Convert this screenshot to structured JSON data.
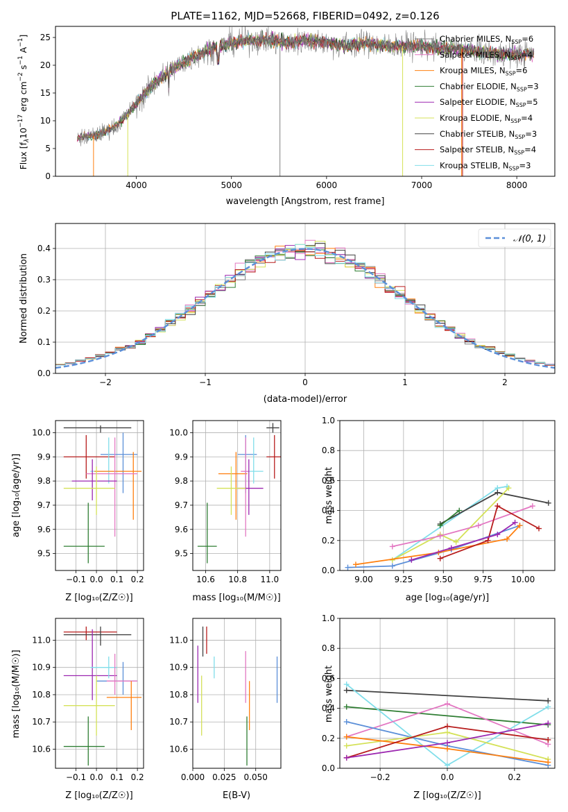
{
  "chart_data": [
    {
      "id": "spectrum",
      "type": "line",
      "title": "PLATE=1162, MJD=52668, FIBERID=0492, z=0.126",
      "xlabel": "wavelength [Angstrom, rest frame]",
      "ylabel": "Flux [f$_\\lambda$10$^{-17}$ erg cm$^{-2}$ s$^{-1}$ A$^{-1}$]",
      "ylabel_parts": {
        "a": "Flux [f",
        "b": "λ",
        "c": "10",
        "d": "−17",
        "e": " erg cm",
        "f": "−2",
        "g": " s",
        "h": "−1",
        "i": " A",
        "j": "−1",
        "k": "]"
      },
      "xlim": [
        3150,
        8400
      ],
      "ylim": [
        0,
        27
      ],
      "xticks": [
        4000,
        5000,
        6000,
        7000,
        8000
      ],
      "yticks": [
        0,
        5,
        10,
        15,
        20,
        25
      ],
      "legend_position": "top-right",
      "legend": [
        {
          "name": "Chabrier MILES, N",
          "sub": "SSP",
          "val": "=6",
          "color": "#808080"
        },
        {
          "name": "Salpeter MILES, N",
          "sub": "SSP",
          "val": "=4",
          "color": "#e377c2"
        },
        {
          "name": "Kroupa MILES, N",
          "sub": "SSP",
          "val": "=6",
          "color": "#ff7f0e"
        },
        {
          "name": "Chabrier ELODIE, N",
          "sub": "SSP",
          "val": "=3",
          "color": "#2e7d32"
        },
        {
          "name": "Salpeter ELODIE, N",
          "sub": "SSP",
          "val": "=5",
          "color": "#9c27b0"
        },
        {
          "name": "Kroupa ELODIE, N",
          "sub": "SSP",
          "val": "=4",
          "color": "#d4e157"
        },
        {
          "name": "Chabrier STELIB, N",
          "sub": "SSP",
          "val": "=3",
          "color": "#404040"
        },
        {
          "name": "Salpeter STELIB, N",
          "sub": "SSP",
          "val": "=4",
          "color": "#b71c1c"
        },
        {
          "name": "Kroupa STELIB, N",
          "sub": "SSP",
          "val": "=3",
          "color": "#80deea"
        }
      ],
      "continuum": [
        [
          3380,
          6.8
        ],
        [
          3600,
          7.5
        ],
        [
          3800,
          9.2
        ],
        [
          4000,
          13
        ],
        [
          4200,
          17
        ],
        [
          4400,
          19.5
        ],
        [
          4600,
          21.5
        ],
        [
          4800,
          23
        ],
        [
          5000,
          24
        ],
        [
          5200,
          24.5
        ],
        [
          5400,
          24.5
        ],
        [
          5600,
          24
        ],
        [
          5800,
          24.5
        ],
        [
          6000,
          24
        ],
        [
          6200,
          23.5
        ],
        [
          6400,
          24
        ],
        [
          6600,
          23.5
        ],
        [
          6800,
          23.5
        ],
        [
          7000,
          23.5
        ],
        [
          7200,
          23
        ],
        [
          7400,
          23
        ],
        [
          7600,
          22.5
        ],
        [
          7800,
          22
        ],
        [
          8000,
          22
        ],
        [
          8200,
          22
        ]
      ],
      "xrange": [
        3380,
        8180
      ],
      "dips": [
        [
          3550,
          "#ff7f0e"
        ],
        [
          3910,
          "#d4e157"
        ],
        [
          5510,
          "#808080"
        ],
        [
          6800,
          "#d4e157"
        ],
        [
          7420,
          "#ff7f0e"
        ],
        [
          7430,
          "#b71c1c"
        ]
      ]
    },
    {
      "id": "residuals",
      "type": "histogram",
      "xlabel": "(data-model)/error",
      "ylabel": "Normed distribution",
      "xlim": [
        -2.5,
        2.5
      ],
      "ylim": [
        0,
        0.48
      ],
      "xticks": [
        -2,
        -1,
        0,
        1,
        2
      ],
      "xtick_labels": [
        "−2",
        "−1",
        "0",
        "1",
        "2"
      ],
      "yticks": [
        0.0,
        0.1,
        0.2,
        0.3,
        0.4
      ],
      "ytick_labels": [
        "0.0",
        "0.1",
        "0.2",
        "0.3",
        "0.4"
      ],
      "grid": true,
      "reference_curve": {
        "name": "𝒩(0, 1)",
        "mean": 0,
        "sigma": 1,
        "color": "#5b8fd8",
        "dashed": true
      },
      "bin_width": 0.1,
      "colors": [
        "#808080",
        "#e377c2",
        "#ff7f0e",
        "#2e7d32",
        "#9c27b0",
        "#d4e157",
        "#404040",
        "#b71c1c",
        "#80deea"
      ]
    },
    {
      "id": "age_vs_Z",
      "type": "errorbar",
      "xlabel": "Z [log₁₀(Z/Z☉)]",
      "ylabel": "age  [log₁₀(age/yr)]",
      "xlim": [
        -0.2,
        0.23
      ],
      "ylim": [
        9.43,
        10.05
      ],
      "xticks": [
        -0.1,
        0.0,
        0.1,
        0.2
      ],
      "xtick_labels": [
        "−0.1",
        "0.0",
        "0.1",
        "0.2"
      ],
      "yticks": [
        9.5,
        9.6,
        9.7,
        9.8,
        9.9,
        10.0
      ],
      "ytick_labels": [
        "9.5",
        "9.6",
        "9.7",
        "9.8",
        "9.9",
        "10.0"
      ],
      "points": [
        {
          "x": 0.02,
          "y": 10.02,
          "xl": -0.16,
          "xh": 0.17,
          "yl": 10.0,
          "yh": 10.03,
          "color": "#404040"
        },
        {
          "x": -0.05,
          "y": 9.9,
          "xl": -0.16,
          "xh": 0.09,
          "yl": 9.81,
          "yh": 9.99,
          "color": "#b71c1c"
        },
        {
          "x": 0.13,
          "y": 9.91,
          "xl": 0.02,
          "xh": 0.2,
          "yl": 9.75,
          "yh": 10.0,
          "color": "#5b8fd8"
        },
        {
          "x": 0.06,
          "y": 9.84,
          "xl": -0.03,
          "xh": 0.13,
          "yl": 9.79,
          "yh": 9.98,
          "color": "#80deea"
        },
        {
          "x": 0.18,
          "y": 9.84,
          "xl": -0.01,
          "xh": 0.22,
          "yl": 9.64,
          "yh": 9.92,
          "color": "#ff7f0e"
        },
        {
          "x": 0.09,
          "y": 9.83,
          "xl": -0.05,
          "xh": 0.2,
          "yl": 9.57,
          "yh": 9.98,
          "color": "#e377c2"
        },
        {
          "x": -0.02,
          "y": 9.8,
          "xl": -0.12,
          "xh": 0.1,
          "yl": 9.72,
          "yh": 9.89,
          "color": "#9c27b0"
        },
        {
          "x": 0.0,
          "y": 9.77,
          "xl": -0.16,
          "xh": 0.09,
          "yl": 9.66,
          "yh": 9.86,
          "color": "#d4e157"
        },
        {
          "x": -0.04,
          "y": 9.53,
          "xl": -0.16,
          "xh": 0.04,
          "yl": 9.46,
          "yh": 9.71,
          "color": "#2e7d32"
        }
      ]
    },
    {
      "id": "age_vs_mass",
      "type": "errorbar",
      "xlabel": "mass [log₁₀(M/M☉)]",
      "ylabel": "",
      "xlim": [
        10.52,
        11.07
      ],
      "ylim": [
        9.43,
        10.05
      ],
      "xticks": [
        10.6,
        10.8,
        11.0
      ],
      "xtick_labels": [
        "10.6",
        "10.8",
        "11.0"
      ],
      "yticks": [
        9.5,
        9.6,
        9.7,
        9.8,
        9.9,
        10.0
      ],
      "ytick_labels": [
        "9.5",
        "9.6",
        "9.7",
        "9.8",
        "9.9",
        "10.0"
      ],
      "points": [
        {
          "x": 11.02,
          "y": 10.02,
          "xl": 10.98,
          "xh": 11.06,
          "yl": 10.0,
          "yh": 10.04,
          "color": "#404040"
        },
        {
          "x": 11.03,
          "y": 9.9,
          "xl": 10.98,
          "xh": 11.08,
          "yl": 9.81,
          "yh": 9.99,
          "color": "#b71c1c"
        },
        {
          "x": 10.85,
          "y": 9.91,
          "xl": 10.8,
          "xh": 10.92,
          "yl": 9.75,
          "yh": 9.99,
          "color": "#5b8fd8"
        },
        {
          "x": 10.9,
          "y": 9.84,
          "xl": 10.84,
          "xh": 10.96,
          "yl": 9.79,
          "yh": 9.98,
          "color": "#80deea"
        },
        {
          "x": 10.79,
          "y": 9.83,
          "xl": 10.68,
          "xh": 10.86,
          "yl": 9.64,
          "yh": 9.92,
          "color": "#ff7f0e"
        },
        {
          "x": 10.85,
          "y": 9.84,
          "xl": 10.82,
          "xh": 10.87,
          "yl": 9.57,
          "yh": 9.98,
          "color": "#e377c2"
        },
        {
          "x": 10.87,
          "y": 9.77,
          "xl": 10.8,
          "xh": 10.96,
          "yl": 9.66,
          "yh": 9.89,
          "color": "#9c27b0"
        },
        {
          "x": 10.76,
          "y": 9.77,
          "xl": 10.67,
          "xh": 10.85,
          "yl": 9.66,
          "yh": 9.86,
          "color": "#d4e157"
        },
        {
          "x": 10.61,
          "y": 9.53,
          "xl": 10.55,
          "xh": 10.67,
          "yl": 9.46,
          "yh": 9.71,
          "color": "#2e7d32"
        }
      ]
    },
    {
      "id": "weight_vs_age",
      "type": "line",
      "xlabel": "age  [log₁₀(age/yr)]",
      "ylabel": "mass weight",
      "xlim": [
        8.85,
        10.2
      ],
      "ylim": [
        0,
        1
      ],
      "xticks": [
        9.0,
        9.25,
        9.5,
        9.75,
        10.0
      ],
      "xtick_labels": [
        "9.00",
        "9.25",
        "9.50",
        "9.75",
        "10.00"
      ],
      "yticks": [
        0.0,
        0.2,
        0.4,
        0.6,
        0.8,
        1.0
      ],
      "ytick_labels": [
        "0.0",
        "0.2",
        "0.4",
        "0.6",
        "0.8",
        "1.0"
      ],
      "series": [
        {
          "x": [
            9.18,
            9.84,
            9.9
          ],
          "y": [
            0.07,
            0.55,
            0.56
          ],
          "color": "#80deea"
        },
        {
          "x": [
            9.48,
            9.84,
            10.16
          ],
          "y": [
            0.31,
            0.52,
            0.45
          ],
          "color": "#404040"
        },
        {
          "x": [
            9.48,
            9.6
          ],
          "y": [
            0.3,
            0.4
          ],
          "color": "#2e7d32"
        },
        {
          "x": [
            9.18,
            9.48,
            9.58,
            9.91
          ],
          "y": [
            0.07,
            0.24,
            0.19,
            0.55
          ],
          "color": "#d4e157"
        },
        {
          "x": [
            9.18,
            9.48,
            9.72,
            10.06
          ],
          "y": [
            0.16,
            0.23,
            0.3,
            0.43
          ],
          "color": "#e377c2"
        },
        {
          "x": [
            8.9,
            9.18,
            9.55,
            9.98
          ],
          "y": [
            0.02,
            0.03,
            0.14,
            0.3
          ],
          "color": "#5b8fd8"
        },
        {
          "x": [
            8.95,
            9.47,
            9.9,
            9.98
          ],
          "y": [
            0.04,
            0.12,
            0.21,
            0.3
          ],
          "color": "#ff7f0e"
        },
        {
          "x": [
            9.48,
            9.78,
            9.84,
            10.1
          ],
          "y": [
            0.08,
            0.2,
            0.43,
            0.28
          ],
          "color": "#b71c1c"
        },
        {
          "x": [
            9.3,
            9.55,
            9.84,
            9.95
          ],
          "y": [
            0.07,
            0.15,
            0.24,
            0.32
          ],
          "color": "#9c27b0"
        }
      ]
    },
    {
      "id": "mass_vs_Z",
      "type": "errorbar",
      "xlabel": "Z [log₁₀(Z/Z☉)]",
      "ylabel": "mass [log₁₀(M/M☉)]",
      "xlim": [
        -0.2,
        0.23
      ],
      "ylim": [
        10.53,
        11.08
      ],
      "xticks": [
        -0.1,
        0.0,
        0.1,
        0.2
      ],
      "xtick_labels": [
        "−0.1",
        "0.0",
        "0.1",
        "0.2"
      ],
      "yticks": [
        10.6,
        10.7,
        10.8,
        10.9,
        11.0
      ],
      "ytick_labels": [
        "10.6",
        "10.7",
        "10.8",
        "10.9",
        "11.0"
      ],
      "points": [
        {
          "x": -0.05,
          "y": 11.03,
          "xl": -0.16,
          "xh": 0.1,
          "yl": 11.0,
          "yh": 11.05,
          "color": "#b71c1c"
        },
        {
          "x": 0.02,
          "y": 11.02,
          "xl": -0.16,
          "xh": 0.17,
          "yl": 10.98,
          "yh": 11.05,
          "color": "#404040"
        },
        {
          "x": -0.02,
          "y": 10.87,
          "xl": -0.16,
          "xh": 0.1,
          "yl": 10.78,
          "yh": 11.04,
          "color": "#9c27b0"
        },
        {
          "x": 0.06,
          "y": 10.9,
          "xl": -0.03,
          "xh": 0.1,
          "yl": 10.86,
          "yh": 10.94,
          "color": "#80deea"
        },
        {
          "x": 0.13,
          "y": 10.85,
          "xl": 0.0,
          "xh": 0.2,
          "yl": 10.8,
          "yh": 10.92,
          "color": "#5b8fd8"
        },
        {
          "x": 0.09,
          "y": 10.85,
          "xl": 0.05,
          "xh": 0.2,
          "yl": 10.8,
          "yh": 10.95,
          "color": "#e377c2"
        },
        {
          "x": 0.17,
          "y": 10.79,
          "xl": 0.05,
          "xh": 0.22,
          "yl": 10.67,
          "yh": 10.85,
          "color": "#ff7f0e"
        },
        {
          "x": 0.0,
          "y": 10.76,
          "xl": -0.16,
          "xh": 0.09,
          "yl": 10.65,
          "yh": 10.87,
          "color": "#d4e157"
        },
        {
          "x": -0.04,
          "y": 10.61,
          "xl": -0.16,
          "xh": 0.04,
          "yl": 10.54,
          "yh": 10.72,
          "color": "#2e7d32"
        }
      ]
    },
    {
      "id": "mass_vs_EBV",
      "type": "errorbar",
      "xlabel": "E(B-V)",
      "ylabel": "",
      "xlim": [
        0.0,
        0.07
      ],
      "ylim": [
        10.53,
        11.08
      ],
      "xticks": [
        0.0,
        0.025,
        0.05
      ],
      "xtick_labels": [
        "0.000",
        "0.025",
        "0.050"
      ],
      "yticks": [
        10.6,
        10.7,
        10.8,
        10.9,
        11.0
      ],
      "ytick_labels": [
        "10.6",
        "10.7",
        "10.8",
        "10.9",
        "11.0"
      ],
      "points": [
        {
          "x": 0.004,
          "y": 10.87,
          "yl": 10.77,
          "yh": 10.98,
          "color": "#9c27b0"
        },
        {
          "x": 0.007,
          "y": 10.76,
          "yl": 10.65,
          "yh": 10.87,
          "color": "#d4e157"
        },
        {
          "x": 0.008,
          "y": 11.0,
          "yl": 10.94,
          "yh": 11.05,
          "color": "#404040"
        },
        {
          "x": 0.011,
          "y": 11.0,
          "yl": 10.95,
          "yh": 11.05,
          "color": "#b71c1c"
        },
        {
          "x": 0.017,
          "y": 10.9,
          "yl": 10.86,
          "yh": 10.94,
          "color": "#80deea"
        },
        {
          "x": 0.042,
          "y": 10.85,
          "yl": 10.77,
          "yh": 10.96,
          "color": "#e377c2"
        },
        {
          "x": 0.043,
          "y": 10.61,
          "yl": 10.54,
          "yh": 10.72,
          "color": "#2e7d32"
        },
        {
          "x": 0.045,
          "y": 10.79,
          "yl": 10.67,
          "yh": 10.85,
          "color": "#ff7f0e"
        },
        {
          "x": 0.067,
          "y": 10.85,
          "yl": 10.77,
          "yh": 10.94,
          "color": "#5b8fd8"
        }
      ]
    },
    {
      "id": "weight_vs_Z",
      "type": "line",
      "xlabel": "Z [log₁₀(Z/Z☉)]",
      "ylabel": "mass weight",
      "xlim": [
        -0.32,
        0.32
      ],
      "ylim": [
        0,
        1
      ],
      "xticks": [
        -0.2,
        0.0,
        0.2
      ],
      "xtick_labels": [
        "−0.2",
        "0.0",
        "0.2"
      ],
      "yticks": [
        0.0,
        0.2,
        0.4,
        0.6,
        0.8,
        1.0
      ],
      "ytick_labels": [
        "0.0",
        "0.2",
        "0.4",
        "0.6",
        "0.8",
        "1.0"
      ],
      "series": [
        {
          "x": [
            -0.3,
            0.3
          ],
          "y": [
            0.52,
            0.45
          ],
          "color": "#404040"
        },
        {
          "x": [
            -0.3,
            0.3
          ],
          "y": [
            0.41,
            0.29
          ],
          "color": "#2e7d32"
        },
        {
          "x": [
            -0.3,
            0.0,
            0.3
          ],
          "y": [
            0.56,
            0.02,
            0.41
          ],
          "color": "#80deea"
        },
        {
          "x": [
            -0.3,
            0.0,
            0.3
          ],
          "y": [
            0.21,
            0.43,
            0.16
          ],
          "color": "#e377c2"
        },
        {
          "x": [
            -0.3,
            0.0,
            0.3
          ],
          "y": [
            0.31,
            0.15,
            0.02
          ],
          "color": "#5b8fd8"
        },
        {
          "x": [
            -0.3,
            0.0,
            0.3
          ],
          "y": [
            0.15,
            0.24,
            0.06
          ],
          "color": "#d4e157"
        },
        {
          "x": [
            -0.3,
            0.0,
            0.3
          ],
          "y": [
            0.21,
            0.13,
            0.04
          ],
          "color": "#ff7f0e"
        },
        {
          "x": [
            -0.3,
            0.0,
            0.3
          ],
          "y": [
            0.07,
            0.28,
            0.19
          ],
          "color": "#b71c1c"
        },
        {
          "x": [
            -0.3,
            0.0,
            0.3
          ],
          "y": [
            0.07,
            0.17,
            0.3
          ],
          "color": "#9c27b0"
        }
      ]
    }
  ]
}
